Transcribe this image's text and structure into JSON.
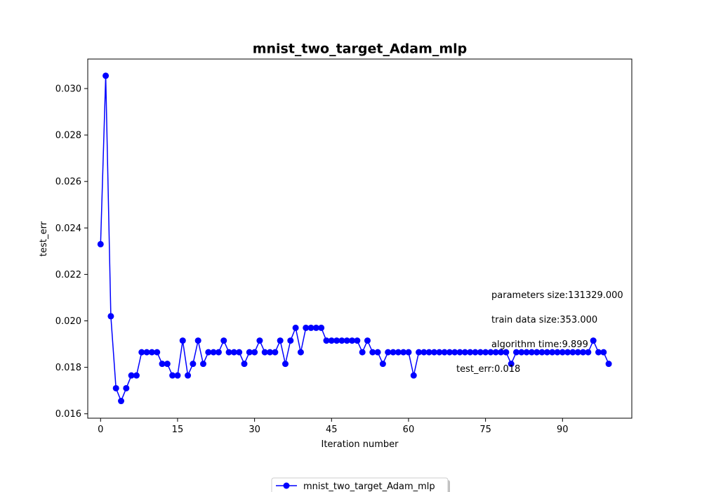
{
  "chart_data": {
    "type": "line",
    "title": "mnist_two_target_Adam_mlp",
    "xlabel": "Iteration number",
    "ylabel": "test_err",
    "xlim": [
      -2.5,
      103.5
    ],
    "ylim": [
      0.01581,
      0.03127
    ],
    "xticks": [
      0,
      15,
      30,
      45,
      60,
      75,
      90
    ],
    "yticks": [
      0.016,
      0.018,
      0.02,
      0.022,
      0.024,
      0.026,
      0.028,
      0.03
    ],
    "ytick_labels": [
      "0.016",
      "0.018",
      "0.020",
      "0.022",
      "0.024",
      "0.026",
      "0.028",
      "0.030"
    ],
    "grid": false,
    "legend": "bottom-center",
    "annotations": [
      {
        "text": "parameters size:131329.000"
      },
      {
        "text": "train data size:353.000"
      },
      {
        "text": "algorithm time:9.899"
      },
      {
        "text": "test_err:0.018"
      }
    ],
    "series": [
      {
        "name": "mnist_two_target_Adam_mlp",
        "color": "#0000ff",
        "marker": "circle",
        "x": [
          0,
          1,
          2,
          3,
          4,
          5,
          6,
          7,
          8,
          9,
          10,
          11,
          12,
          13,
          14,
          15,
          16,
          17,
          18,
          19,
          20,
          21,
          22,
          23,
          24,
          25,
          26,
          27,
          28,
          29,
          30,
          31,
          32,
          33,
          34,
          35,
          36,
          37,
          38,
          39,
          40,
          41,
          42,
          43,
          44,
          45,
          46,
          47,
          48,
          49,
          50,
          51,
          52,
          53,
          54,
          55,
          56,
          57,
          58,
          59,
          60,
          61,
          62,
          63,
          64,
          65,
          66,
          67,
          68,
          69,
          70,
          71,
          72,
          73,
          74,
          75,
          76,
          77,
          78,
          79,
          80,
          81,
          82,
          83,
          84,
          85,
          86,
          87,
          88,
          89,
          90,
          91,
          92,
          93,
          94,
          95,
          96,
          97,
          98,
          99
        ],
        "y": [
          0.0233,
          0.03055,
          0.0202,
          0.0171,
          0.01655,
          0.0171,
          0.01765,
          0.01765,
          0.01865,
          0.01865,
          0.01865,
          0.01865,
          0.01815,
          0.01815,
          0.01765,
          0.01765,
          0.01915,
          0.01765,
          0.01815,
          0.01915,
          0.01815,
          0.01865,
          0.01865,
          0.01865,
          0.01915,
          0.01865,
          0.01865,
          0.01865,
          0.01815,
          0.01865,
          0.01865,
          0.01915,
          0.01865,
          0.01865,
          0.01865,
          0.01915,
          0.01815,
          0.01915,
          0.0197,
          0.01865,
          0.0197,
          0.0197,
          0.0197,
          0.0197,
          0.01915,
          0.01915,
          0.01915,
          0.01915,
          0.01915,
          0.01915,
          0.01915,
          0.01865,
          0.01915,
          0.01865,
          0.01865,
          0.01815,
          0.01865,
          0.01865,
          0.01865,
          0.01865,
          0.01865,
          0.01765,
          0.01865,
          0.01865,
          0.01865,
          0.01865,
          0.01865,
          0.01865,
          0.01865,
          0.01865,
          0.01865,
          0.01865,
          0.01865,
          0.01865,
          0.01865,
          0.01865,
          0.01865,
          0.01865,
          0.01865,
          0.01865,
          0.01815,
          0.01865,
          0.01865,
          0.01865,
          0.01865,
          0.01865,
          0.01865,
          0.01865,
          0.01865,
          0.01865,
          0.01865,
          0.01865,
          0.01865,
          0.01865,
          0.01865,
          0.01865,
          0.01915,
          0.01865,
          0.01865,
          0.01815
        ]
      }
    ]
  }
}
